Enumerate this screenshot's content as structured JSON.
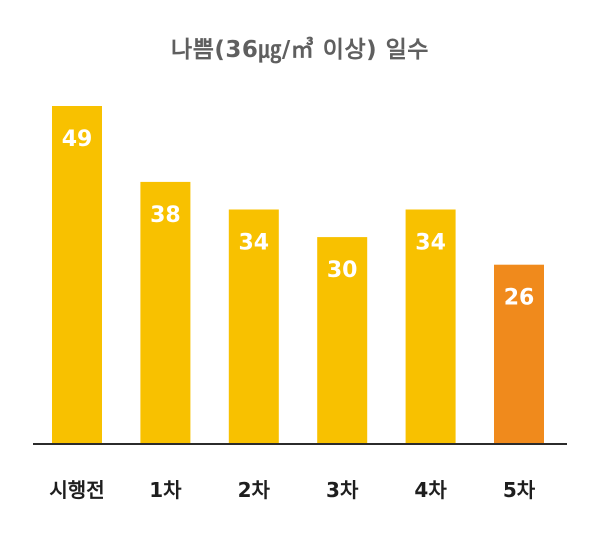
{
  "chart_data": {
    "type": "bar",
    "title": "나쁨(36㎍/㎥ 이상) 일수",
    "categories": [
      "시행전",
      "1차",
      "2차",
      "3차",
      "4차",
      "5차"
    ],
    "values": [
      49,
      38,
      34,
      30,
      34,
      26
    ],
    "data_labels": [
      "49",
      "38",
      "34",
      "30",
      "34",
      "26"
    ],
    "bar_colors": [
      "#F8C100",
      "#F8C100",
      "#F8C100",
      "#F8C100",
      "#F8C100",
      "#F08A1C"
    ],
    "label_color": "#ffffff",
    "axis_color": "#2b2b2b",
    "ylim": [
      0,
      49
    ],
    "grid": false,
    "legend": "none"
  }
}
